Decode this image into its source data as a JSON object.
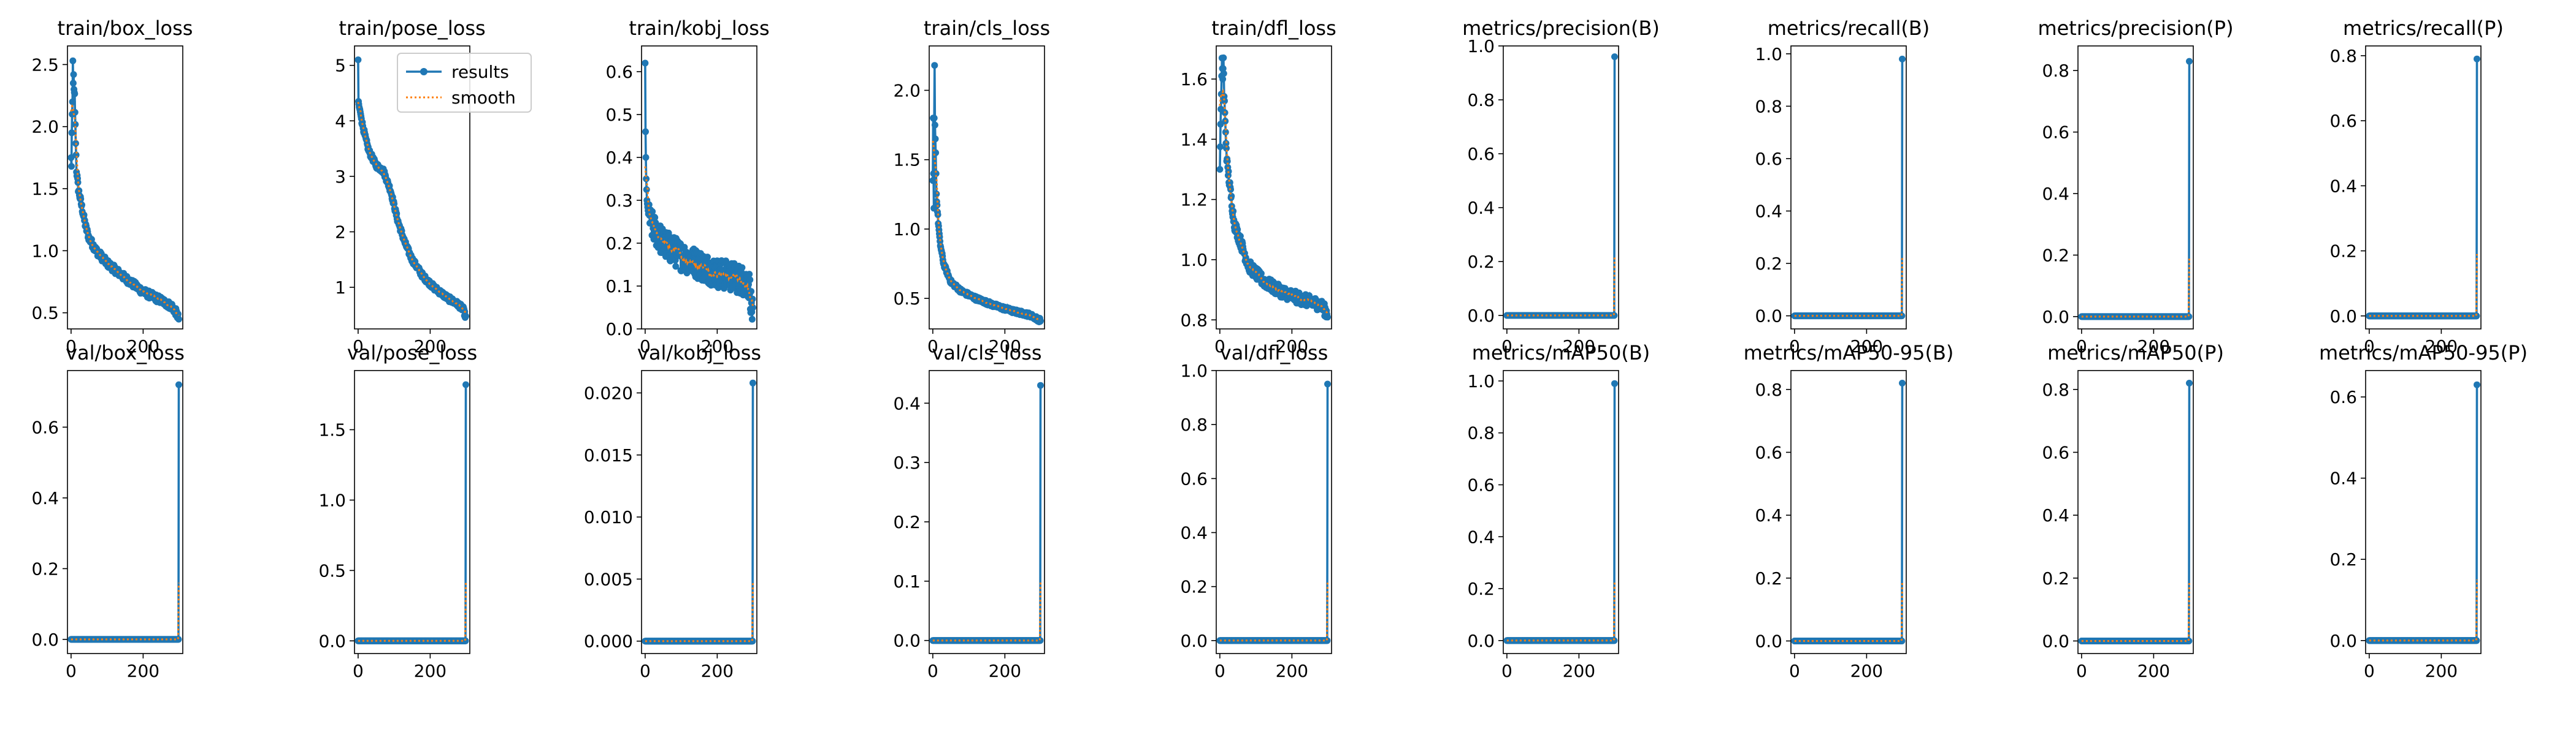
{
  "figure": {
    "background": "#ffffff",
    "nrows": 2,
    "ncols": 9
  },
  "legend": {
    "subplot": 1,
    "placement": "upper right",
    "entries": [
      "results",
      "smooth"
    ]
  },
  "series_style": {
    "results": {
      "color": "#1f77b4",
      "marker": "circle",
      "line": "solid"
    },
    "smooth": {
      "color": "#ff7f0e",
      "line": "dotted"
    }
  },
  "chart_data": [
    {
      "type": "line",
      "title": "train/box_loss",
      "xlim": [
        -10,
        310
      ],
      "ylim": [
        0.37,
        2.65
      ],
      "xticks": [
        0,
        200
      ],
      "yticks": [
        0.5,
        1.0,
        1.5,
        2.0,
        2.5
      ],
      "yprec": 1,
      "shape": "decay",
      "x_points": 300,
      "anchors": [
        [
          0,
          1.75
        ],
        [
          1,
          1.68
        ],
        [
          2,
          1.95
        ],
        [
          3,
          2.1
        ],
        [
          4,
          2.2
        ],
        [
          5,
          2.53
        ],
        [
          6,
          2.35
        ],
        [
          7,
          2.42
        ],
        [
          8,
          2.3
        ],
        [
          10,
          2.25
        ],
        [
          12,
          2.0
        ],
        [
          15,
          1.65
        ],
        [
          20,
          1.5
        ],
        [
          30,
          1.35
        ],
        [
          40,
          1.2
        ],
        [
          50,
          1.1
        ],
        [
          70,
          1.0
        ],
        [
          100,
          0.9
        ],
        [
          150,
          0.78
        ],
        [
          200,
          0.67
        ],
        [
          250,
          0.6
        ],
        [
          280,
          0.55
        ],
        [
          292,
          0.5
        ],
        [
          299,
          0.45
        ]
      ],
      "noise": 0.03
    },
    {
      "type": "line",
      "title": "train/pose_loss",
      "xlim": [
        -10,
        310
      ],
      "ylim": [
        0.25,
        5.35
      ],
      "xticks": [
        0,
        200
      ],
      "yticks": [
        1,
        2,
        3,
        4,
        5
      ],
      "yprec": 0,
      "shape": "decay",
      "x_points": 300,
      "anchors": [
        [
          0,
          5.1
        ],
        [
          1,
          4.35
        ],
        [
          3,
          4.25
        ],
        [
          5,
          4.2
        ],
        [
          10,
          4.0
        ],
        [
          20,
          3.7
        ],
        [
          30,
          3.45
        ],
        [
          50,
          3.2
        ],
        [
          70,
          3.1
        ],
        [
          90,
          2.75
        ],
        [
          110,
          2.2
        ],
        [
          130,
          1.8
        ],
        [
          150,
          1.5
        ],
        [
          180,
          1.2
        ],
        [
          210,
          1.0
        ],
        [
          250,
          0.8
        ],
        [
          280,
          0.68
        ],
        [
          292,
          0.6
        ],
        [
          299,
          0.45
        ]
      ],
      "noise": 0.05
    },
    {
      "type": "line",
      "title": "train/kobj_loss",
      "xlim": [
        -10,
        310
      ],
      "ylim": [
        0.0,
        0.66
      ],
      "xticks": [
        0,
        200
      ],
      "yticks": [
        0.0,
        0.1,
        0.2,
        0.3,
        0.4,
        0.5,
        0.6
      ],
      "yprec": 1,
      "shape": "decay",
      "x_points": 300,
      "anchors": [
        [
          0,
          0.62
        ],
        [
          1,
          0.46
        ],
        [
          2,
          0.4
        ],
        [
          3,
          0.35
        ],
        [
          5,
          0.3
        ],
        [
          10,
          0.26
        ],
        [
          20,
          0.24
        ],
        [
          50,
          0.2
        ],
        [
          100,
          0.17
        ],
        [
          150,
          0.15
        ],
        [
          200,
          0.13
        ],
        [
          250,
          0.12
        ],
        [
          280,
          0.11
        ],
        [
          290,
          0.1
        ],
        [
          295,
          0.05
        ],
        [
          299,
          0.03
        ]
      ],
      "noise": 0.035
    },
    {
      "type": "line",
      "title": "train/cls_loss",
      "xlim": [
        -10,
        310
      ],
      "ylim": [
        0.28,
        2.32
      ],
      "xticks": [
        0,
        200
      ],
      "yticks": [
        0.5,
        1.0,
        1.5,
        2.0
      ],
      "yprec": 1,
      "shape": "decay",
      "x_points": 300,
      "anchors": [
        [
          0,
          1.35
        ],
        [
          1,
          1.8
        ],
        [
          2,
          1.4
        ],
        [
          3,
          1.15
        ],
        [
          4,
          1.8
        ],
        [
          5,
          2.18
        ],
        [
          6,
          1.75
        ],
        [
          8,
          1.55
        ],
        [
          10,
          1.25
        ],
        [
          15,
          1.05
        ],
        [
          20,
          0.9
        ],
        [
          30,
          0.75
        ],
        [
          50,
          0.62
        ],
        [
          80,
          0.55
        ],
        [
          120,
          0.5
        ],
        [
          170,
          0.45
        ],
        [
          220,
          0.41
        ],
        [
          270,
          0.38
        ],
        [
          299,
          0.34
        ]
      ],
      "noise": 0.015
    },
    {
      "type": "line",
      "title": "train/dfl_loss",
      "xlim": [
        -10,
        310
      ],
      "ylim": [
        0.77,
        1.71
      ],
      "xticks": [
        0,
        200
      ],
      "yticks": [
        0.8,
        1.0,
        1.2,
        1.4,
        1.6
      ],
      "yprec": 1,
      "shape": "decay",
      "x_points": 300,
      "anchors": [
        [
          0,
          1.3
        ],
        [
          2,
          1.45
        ],
        [
          4,
          1.55
        ],
        [
          6,
          1.67
        ],
        [
          8,
          1.6
        ],
        [
          10,
          1.67
        ],
        [
          12,
          1.55
        ],
        [
          15,
          1.45
        ],
        [
          20,
          1.32
        ],
        [
          30,
          1.22
        ],
        [
          40,
          1.12
        ],
        [
          60,
          1.05
        ],
        [
          80,
          0.98
        ],
        [
          120,
          0.93
        ],
        [
          160,
          0.9
        ],
        [
          200,
          0.88
        ],
        [
          250,
          0.86
        ],
        [
          280,
          0.85
        ],
        [
          299,
          0.82
        ]
      ],
      "noise": 0.02
    },
    {
      "type": "line",
      "title": "metrics/precision(B)",
      "xlim": [
        -10,
        310
      ],
      "ylim": [
        -0.05,
        1.0
      ],
      "xticks": [
        0,
        200
      ],
      "yticks": [
        0.0,
        0.2,
        0.4,
        0.6,
        0.8,
        1.0
      ],
      "yprec": 1,
      "shape": "spike",
      "x_points": 300,
      "spike_value": 0.96,
      "smooth_end": 0.22
    },
    {
      "type": "line",
      "title": "metrics/recall(B)",
      "xlim": [
        -10,
        310
      ],
      "ylim": [
        -0.05,
        1.03
      ],
      "xticks": [
        0,
        200
      ],
      "yticks": [
        0.0,
        0.2,
        0.4,
        0.6,
        0.8,
        1.0
      ],
      "yprec": 1,
      "shape": "spike",
      "x_points": 300,
      "spike_value": 0.98,
      "smooth_end": 0.22
    },
    {
      "type": "line",
      "title": "metrics/precision(P)",
      "xlim": [
        -10,
        310
      ],
      "ylim": [
        -0.04,
        0.88
      ],
      "xticks": [
        0,
        200
      ],
      "yticks": [
        0.0,
        0.2,
        0.4,
        0.6,
        0.8
      ],
      "yprec": 1,
      "shape": "spike",
      "x_points": 300,
      "spike_value": 0.83,
      "smooth_end": 0.19
    },
    {
      "type": "line",
      "title": "metrics/recall(P)",
      "xlim": [
        -10,
        310
      ],
      "ylim": [
        -0.04,
        0.83
      ],
      "xticks": [
        0,
        200
      ],
      "yticks": [
        0.0,
        0.2,
        0.4,
        0.6,
        0.8
      ],
      "yprec": 1,
      "shape": "spike",
      "x_points": 300,
      "spike_value": 0.79,
      "smooth_end": 0.19
    },
    {
      "type": "line",
      "title": "val/box_loss",
      "xlim": [
        -10,
        310
      ],
      "ylim": [
        -0.04,
        0.76
      ],
      "xticks": [
        0,
        200
      ],
      "yticks": [
        0.0,
        0.2,
        0.4,
        0.6
      ],
      "yprec": 1,
      "shape": "spike",
      "x_points": 300,
      "spike_value": 0.72,
      "smooth_end": 0.16
    },
    {
      "type": "line",
      "title": "val/pose_loss",
      "xlim": [
        -10,
        310
      ],
      "ylim": [
        -0.09,
        1.92
      ],
      "xticks": [
        0,
        200
      ],
      "yticks": [
        0.0,
        0.5,
        1.0,
        1.5
      ],
      "yprec": 1,
      "shape": "spike",
      "x_points": 300,
      "spike_value": 1.82,
      "smooth_end": 0.42
    },
    {
      "type": "line",
      "title": "val/kobj_loss",
      "xlim": [
        -10,
        310
      ],
      "ylim": [
        -0.001,
        0.0218
      ],
      "xticks": [
        0,
        200
      ],
      "yticks": [
        0.0,
        0.005,
        0.01,
        0.015,
        0.02
      ],
      "yprec": 3,
      "shape": "spike",
      "x_points": 300,
      "spike_value": 0.0208,
      "smooth_end": 0.0048
    },
    {
      "type": "line",
      "title": "val/cls_loss",
      "xlim": [
        -10,
        310
      ],
      "ylim": [
        -0.022,
        0.455
      ],
      "xticks": [
        0,
        200
      ],
      "yticks": [
        0.0,
        0.1,
        0.2,
        0.3,
        0.4
      ],
      "yprec": 1,
      "shape": "spike",
      "x_points": 300,
      "spike_value": 0.43,
      "smooth_end": 0.1
    },
    {
      "type": "line",
      "title": "val/dfl_loss",
      "xlim": [
        -10,
        310
      ],
      "ylim": [
        -0.048,
        1.0
      ],
      "xticks": [
        0,
        200
      ],
      "yticks": [
        0.0,
        0.2,
        0.4,
        0.6,
        0.8,
        1.0
      ],
      "yprec": 1,
      "shape": "spike",
      "x_points": 300,
      "spike_value": 0.95,
      "smooth_end": 0.22
    },
    {
      "type": "line",
      "title": "metrics/mAP50(B)",
      "xlim": [
        -10,
        310
      ],
      "ylim": [
        -0.05,
        1.04
      ],
      "xticks": [
        0,
        200
      ],
      "yticks": [
        0.0,
        0.2,
        0.4,
        0.6,
        0.8,
        1.0
      ],
      "yprec": 1,
      "shape": "spike",
      "x_points": 300,
      "spike_value": 0.99,
      "smooth_end": 0.23
    },
    {
      "type": "line",
      "title": "metrics/mAP50-95(B)",
      "xlim": [
        -10,
        310
      ],
      "ylim": [
        -0.04,
        0.86
      ],
      "xticks": [
        0,
        200
      ],
      "yticks": [
        0.0,
        0.2,
        0.4,
        0.6,
        0.8
      ],
      "yprec": 1,
      "shape": "spike",
      "x_points": 300,
      "spike_value": 0.82,
      "smooth_end": 0.19
    },
    {
      "type": "line",
      "title": "metrics/mAP50(P)",
      "xlim": [
        -10,
        310
      ],
      "ylim": [
        -0.04,
        0.86
      ],
      "xticks": [
        0,
        200
      ],
      "yticks": [
        0.0,
        0.2,
        0.4,
        0.6,
        0.8
      ],
      "yprec": 1,
      "shape": "spike",
      "x_points": 300,
      "spike_value": 0.82,
      "smooth_end": 0.19
    },
    {
      "type": "line",
      "title": "metrics/mAP50-95(P)",
      "xlim": [
        -10,
        310
      ],
      "ylim": [
        -0.032,
        0.665
      ],
      "xticks": [
        0,
        200
      ],
      "yticks": [
        0.0,
        0.2,
        0.4,
        0.6
      ],
      "yprec": 1,
      "shape": "spike",
      "x_points": 300,
      "spike_value": 0.63,
      "smooth_end": 0.15
    }
  ]
}
